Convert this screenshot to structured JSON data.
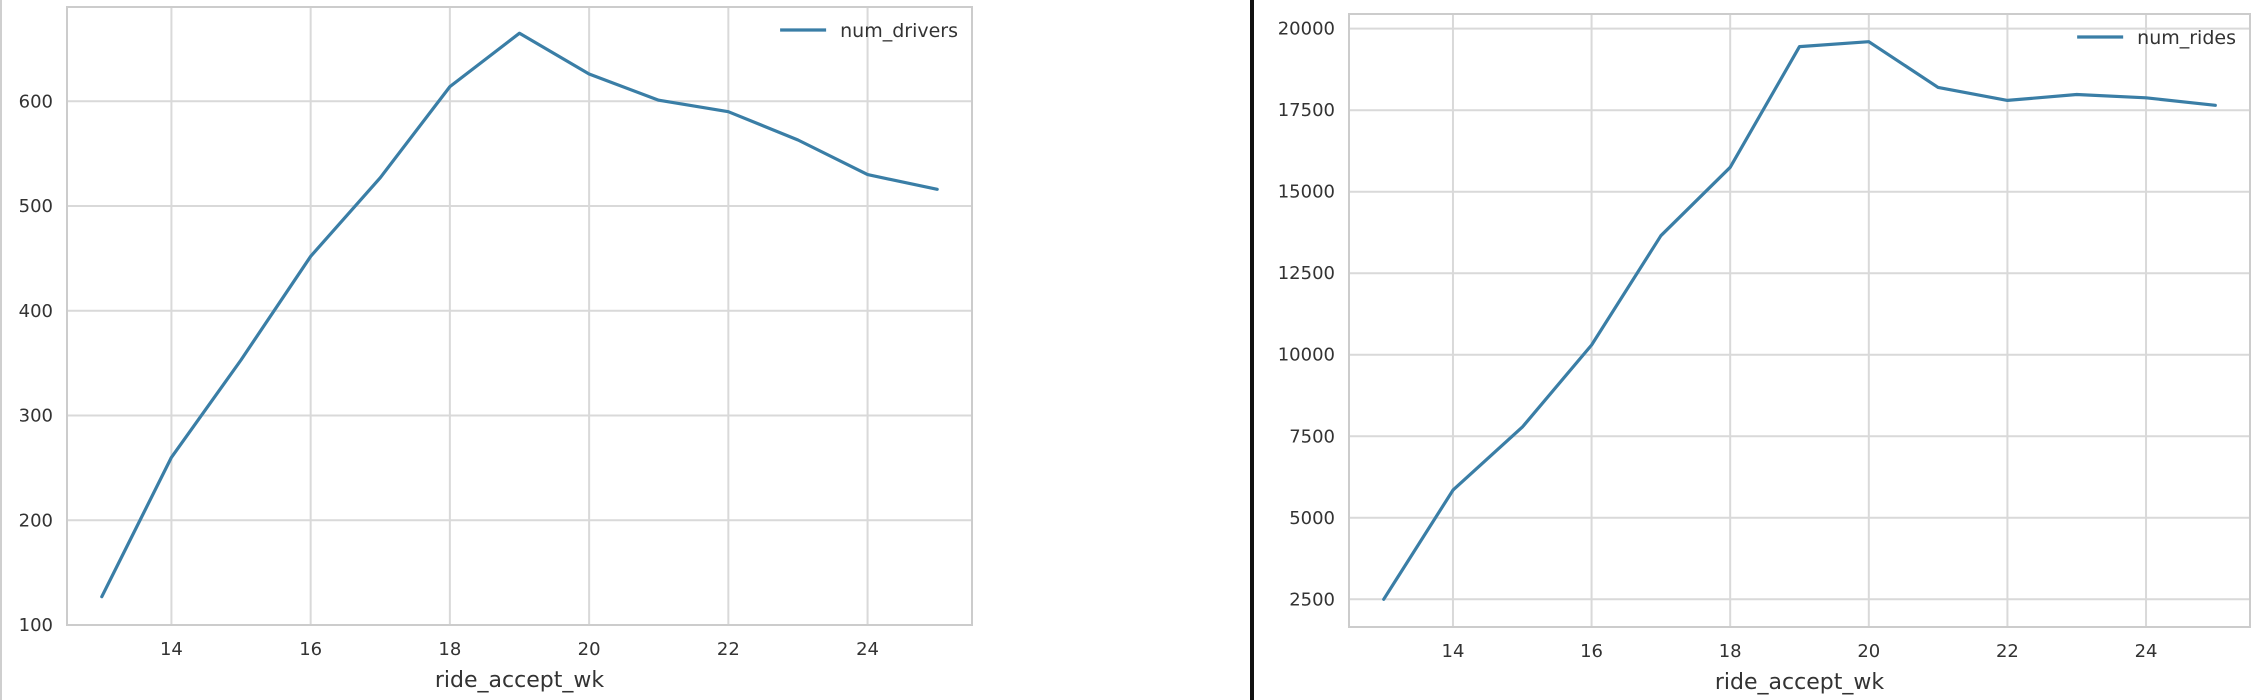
{
  "colors": {
    "series": "#3a7ea6",
    "divider": "#111111",
    "left_edge": "#cfcfcf"
  },
  "chart_data": [
    {
      "type": "line",
      "title": "",
      "xlabel": "ride_accept_wk",
      "ylabel": "",
      "x": [
        13,
        14,
        15,
        16,
        17,
        18,
        19,
        20,
        21,
        22,
        23,
        24,
        25
      ],
      "series": [
        {
          "name": "num_drivers",
          "values": [
            127,
            260,
            353,
            452,
            527,
            614,
            665,
            626,
            601,
            590,
            563,
            530,
            516
          ]
        }
      ],
      "xlim": [
        12.5,
        25.5
      ],
      "ylim": [
        100,
        690
      ],
      "xticks": [
        14,
        16,
        18,
        20,
        22,
        24
      ],
      "yticks": [
        100,
        200,
        300,
        400,
        500,
        600
      ],
      "xtick_labels": [
        "14",
        "16",
        "18",
        "20",
        "22",
        "24"
      ],
      "ytick_labels": [
        "100",
        "200",
        "300",
        "400",
        "500",
        "600"
      ],
      "grid": true,
      "legend": "top-right"
    },
    {
      "type": "line",
      "title": "",
      "xlabel": "ride_accept_wk",
      "ylabel": "",
      "x": [
        13,
        14,
        15,
        16,
        17,
        18,
        19,
        20,
        21,
        22,
        23,
        24,
        25
      ],
      "series": [
        {
          "name": "num_rides",
          "values": [
            2500,
            5850,
            7780,
            10300,
            13650,
            15750,
            19450,
            19600,
            18200,
            17800,
            17980,
            17880,
            17650
          ]
        }
      ],
      "xlim": [
        12.5,
        25.5
      ],
      "ylim": [
        1650,
        20450
      ],
      "xticks": [
        14,
        16,
        18,
        20,
        22,
        24
      ],
      "yticks": [
        2500,
        5000,
        7500,
        10000,
        12500,
        15000,
        17500,
        20000
      ],
      "xtick_labels": [
        "14",
        "16",
        "18",
        "20",
        "22",
        "24"
      ],
      "ytick_labels": [
        "2500",
        "5000",
        "7500",
        "10000",
        "12500",
        "15000",
        "17500",
        "20000"
      ],
      "grid": true,
      "legend": "top-right"
    }
  ]
}
